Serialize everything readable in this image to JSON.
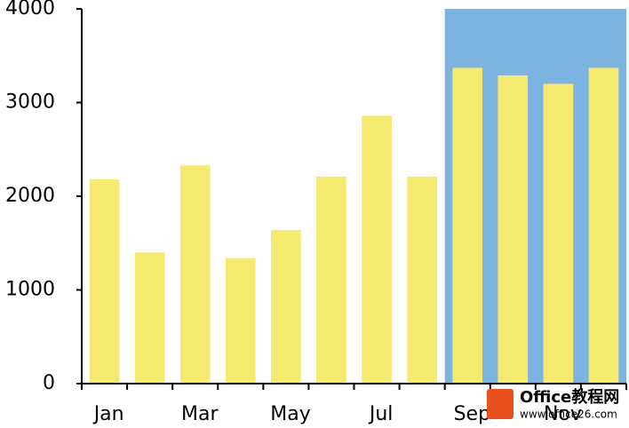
{
  "chart_data": {
    "type": "bar",
    "categories": [
      "Jan",
      null,
      "Mar",
      null,
      "May",
      null,
      "Jul",
      null,
      "Sep",
      null,
      "Nov",
      null
    ],
    "values": [
      2180,
      1400,
      2330,
      1340,
      1640,
      2210,
      2860,
      2210,
      3370,
      3290,
      3200,
      3370
    ],
    "color": "#f5ea70",
    "ylim": [
      0,
      4000
    ],
    "yticks": [
      0,
      1000,
      2000,
      3000,
      4000
    ],
    "grid": false,
    "highlight": {
      "start": "Sep",
      "color": "#7db3e0"
    },
    "watermark": [
      "Office教程网",
      "www.office26.com"
    ]
  }
}
